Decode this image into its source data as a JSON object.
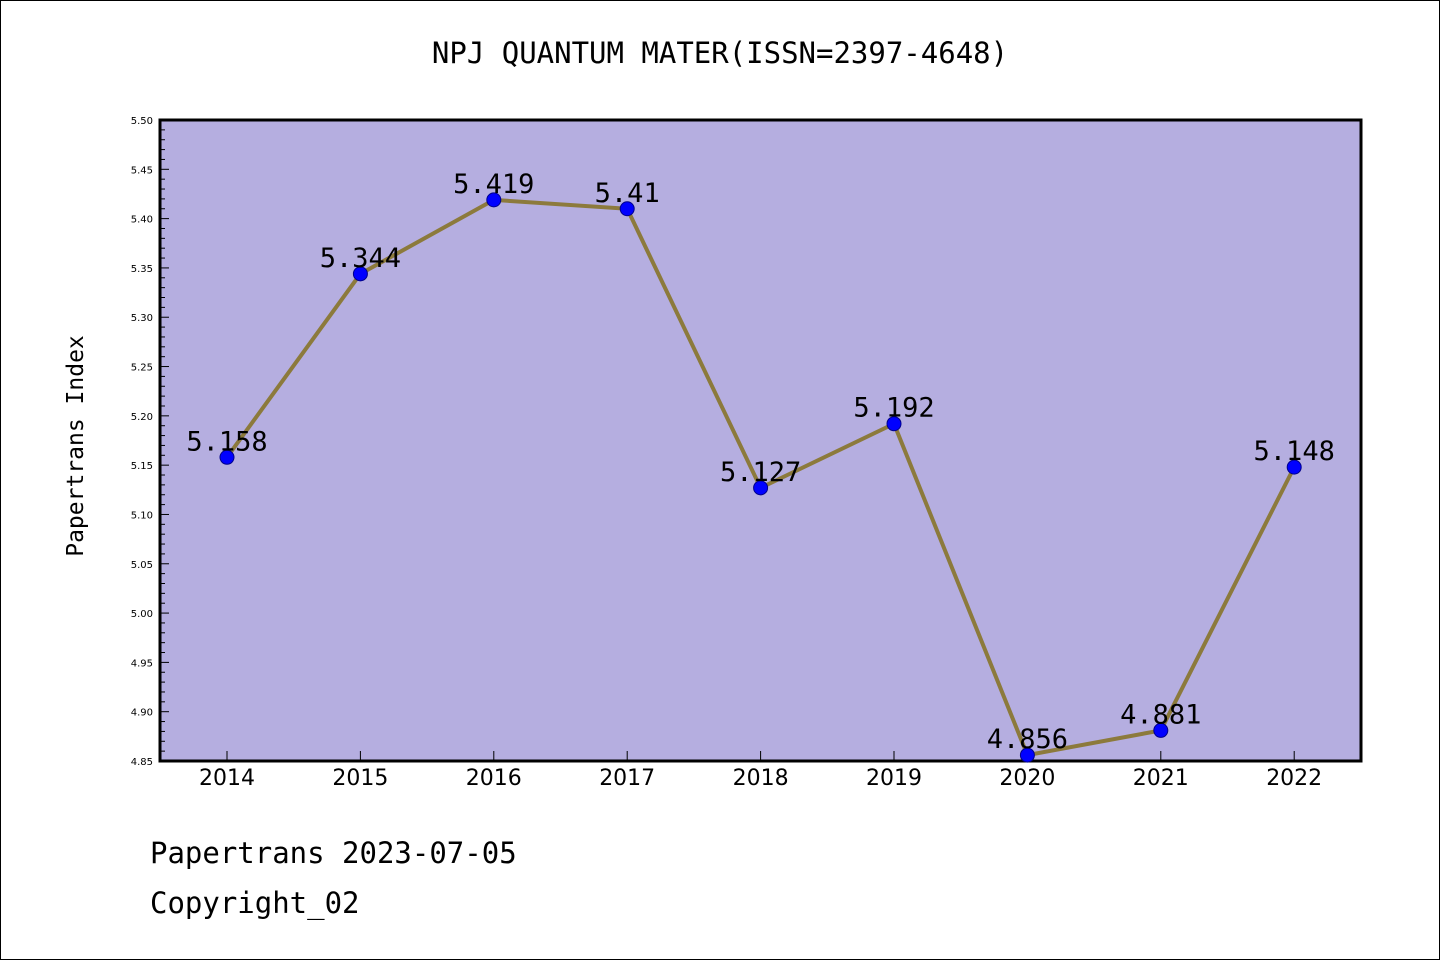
{
  "chart_data": {
    "type": "line",
    "title": "NPJ QUANTUM MATER(ISSN=2397-4648)",
    "xlabel": "",
    "ylabel": "Papertrans Index",
    "categories": [
      "2014",
      "2015",
      "2016",
      "2017",
      "2018",
      "2019",
      "2020",
      "2021",
      "2022"
    ],
    "series": [
      {
        "values": [
          5.158,
          5.344,
          5.419,
          5.41,
          5.127,
          5.192,
          4.856,
          4.881,
          5.148
        ],
        "labels": [
          "5.158",
          "5.344",
          "5.419",
          "5.41",
          "5.127",
          "5.192",
          "4.856",
          "4.881",
          "5.148"
        ]
      }
    ],
    "ylim": [
      4.85,
      5.5
    ],
    "yticks": [
      "4.85",
      "4.90",
      "4.95",
      "5.00",
      "5.05",
      "5.10",
      "5.15",
      "5.20",
      "5.25",
      "5.30",
      "5.35",
      "5.40",
      "5.45",
      "5.50"
    ],
    "grid": false,
    "colors": {
      "plot_background": "#b5aee0",
      "line": "#8c7a3c",
      "marker": "#0000ff",
      "marker_edge": "#00008b"
    }
  },
  "footer": {
    "line1": "Papertrans 2023-07-05",
    "line2": "Copyright_02"
  }
}
